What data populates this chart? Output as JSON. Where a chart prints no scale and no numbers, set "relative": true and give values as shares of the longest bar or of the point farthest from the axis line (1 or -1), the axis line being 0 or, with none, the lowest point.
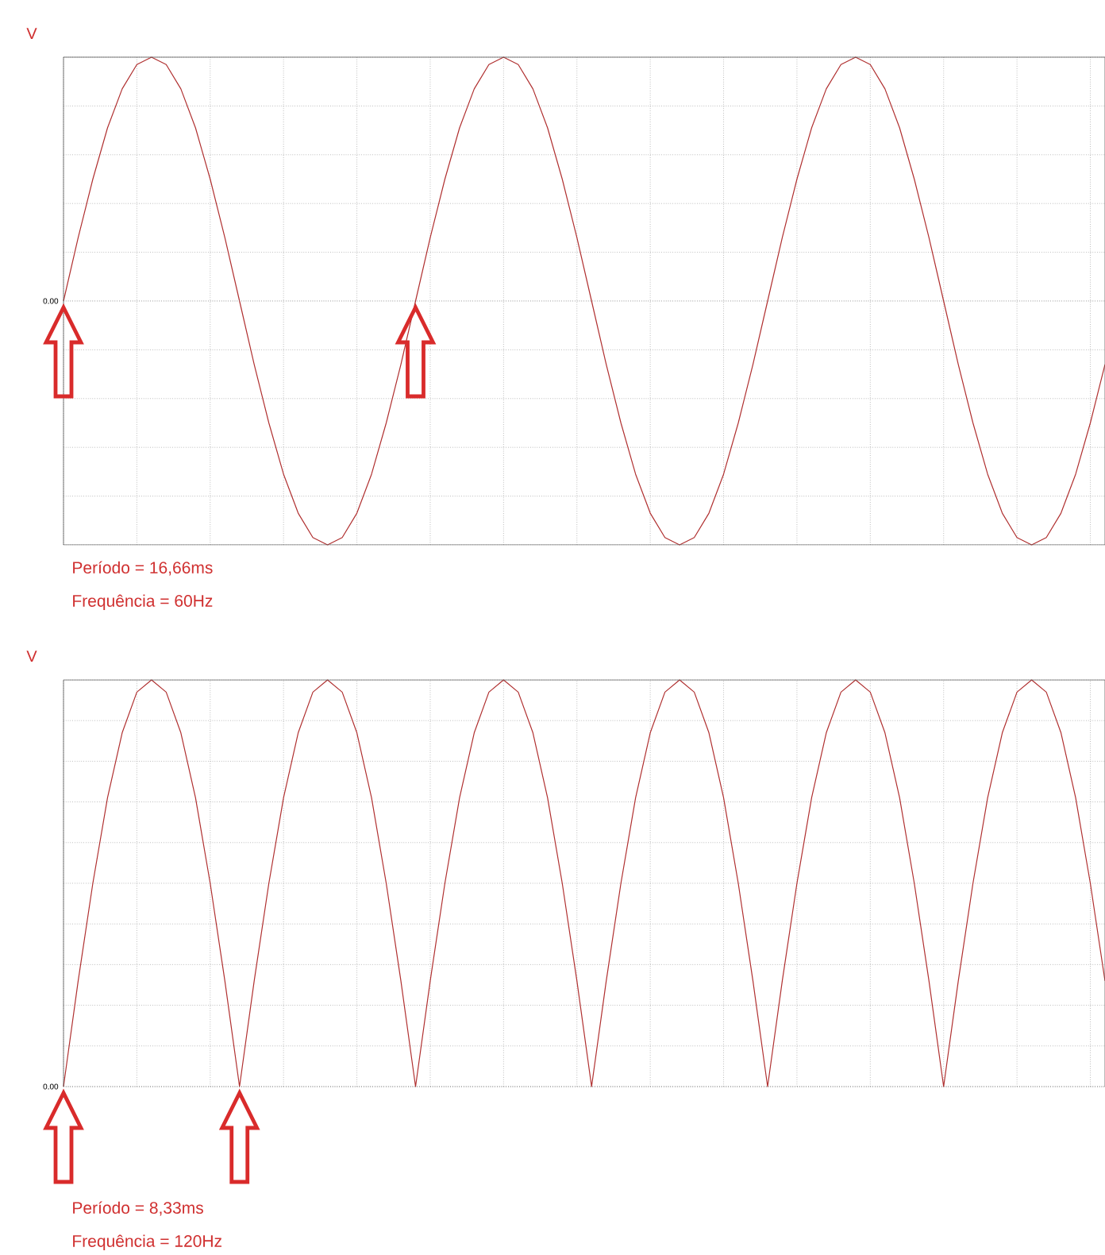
{
  "chart_data": [
    {
      "type": "line",
      "relative": true,
      "ylabel": "V",
      "grid": true,
      "tick_labels": false,
      "categories": [
        null,
        null,
        null,
        null,
        null,
        null,
        null,
        null,
        null,
        null,
        null,
        null,
        null,
        null,
        null,
        null,
        null,
        null,
        null,
        null,
        null,
        null,
        null,
        null,
        null,
        null,
        null,
        null,
        null,
        null,
        null,
        null,
        null,
        null,
        null,
        null,
        null,
        null,
        null,
        null,
        null,
        null,
        null,
        null,
        null,
        null,
        null,
        null,
        null,
        null,
        null,
        null,
        null,
        null,
        null,
        null,
        null,
        null,
        null,
        null,
        null,
        null,
        null,
        null,
        null,
        null,
        null,
        null,
        null,
        null,
        null,
        null
      ],
      "series": [
        {
          "color": "#b03030",
          "values": [
            0,
            0.26,
            0.5,
            0.71,
            0.87,
            0.97,
            1,
            0.97,
            0.87,
            0.71,
            0.5,
            0.26,
            0,
            -0.26,
            -0.5,
            -0.71,
            -0.87,
            -0.97,
            -1,
            -0.97,
            -0.87,
            -0.71,
            -0.5,
            -0.26,
            0,
            0.26,
            0.5,
            0.71,
            0.87,
            0.97,
            1,
            0.97,
            0.87,
            0.71,
            0.5,
            0.26,
            0,
            -0.26,
            -0.5,
            -0.71,
            -0.87,
            -0.97,
            -1,
            -0.97,
            -0.87,
            -0.71,
            -0.5,
            -0.26,
            0,
            0.26,
            0.5,
            0.71,
            0.87,
            0.97,
            1,
            0.97,
            0.87,
            0.71,
            0.5,
            0.26,
            0,
            -0.26,
            -0.5,
            -0.71,
            -0.87,
            -0.97,
            -1,
            -0.97,
            -0.87,
            -0.71,
            -0.5,
            -0.26
          ]
        }
      ],
      "ref_lines": [
        {
          "axis": "y",
          "value": 0,
          "label": "0.00"
        }
      ],
      "annotations": [
        "Período = 16,66ms",
        "Frequência = 60Hz"
      ]
    },
    {
      "type": "line",
      "relative": true,
      "ylabel": "V",
      "grid": true,
      "tick_labels": false,
      "categories": [
        null,
        null,
        null,
        null,
        null,
        null,
        null,
        null,
        null,
        null,
        null,
        null,
        null,
        null,
        null,
        null,
        null,
        null,
        null,
        null,
        null,
        null,
        null,
        null,
        null,
        null,
        null,
        null,
        null,
        null,
        null,
        null,
        null,
        null,
        null,
        null,
        null,
        null,
        null,
        null,
        null,
        null,
        null,
        null,
        null,
        null,
        null,
        null,
        null,
        null,
        null,
        null,
        null,
        null,
        null,
        null,
        null,
        null,
        null,
        null,
        null,
        null,
        null,
        null,
        null,
        null,
        null,
        null,
        null,
        null,
        null,
        null
      ],
      "series": [
        {
          "color": "#b03030",
          "values": [
            0,
            0.26,
            0.5,
            0.71,
            0.87,
            0.97,
            1,
            0.97,
            0.87,
            0.71,
            0.5,
            0.26,
            0,
            0.26,
            0.5,
            0.71,
            0.87,
            0.97,
            1,
            0.97,
            0.87,
            0.71,
            0.5,
            0.26,
            0,
            0.26,
            0.5,
            0.71,
            0.87,
            0.97,
            1,
            0.97,
            0.87,
            0.71,
            0.5,
            0.26,
            0,
            0.26,
            0.5,
            0.71,
            0.87,
            0.97,
            1,
            0.97,
            0.87,
            0.71,
            0.5,
            0.26,
            0,
            0.26,
            0.5,
            0.71,
            0.87,
            0.97,
            1,
            0.97,
            0.87,
            0.71,
            0.5,
            0.26,
            0,
            0.26,
            0.5,
            0.71,
            0.87,
            0.97,
            1,
            0.97,
            0.87,
            0.71,
            0.5,
            0.26
          ]
        }
      ],
      "ref_lines": [
        {
          "axis": "y",
          "value": 0,
          "label": "0.00"
        }
      ],
      "annotations": [
        "Período = 8,33ms",
        "Frequência = 120Hz"
      ]
    }
  ]
}
